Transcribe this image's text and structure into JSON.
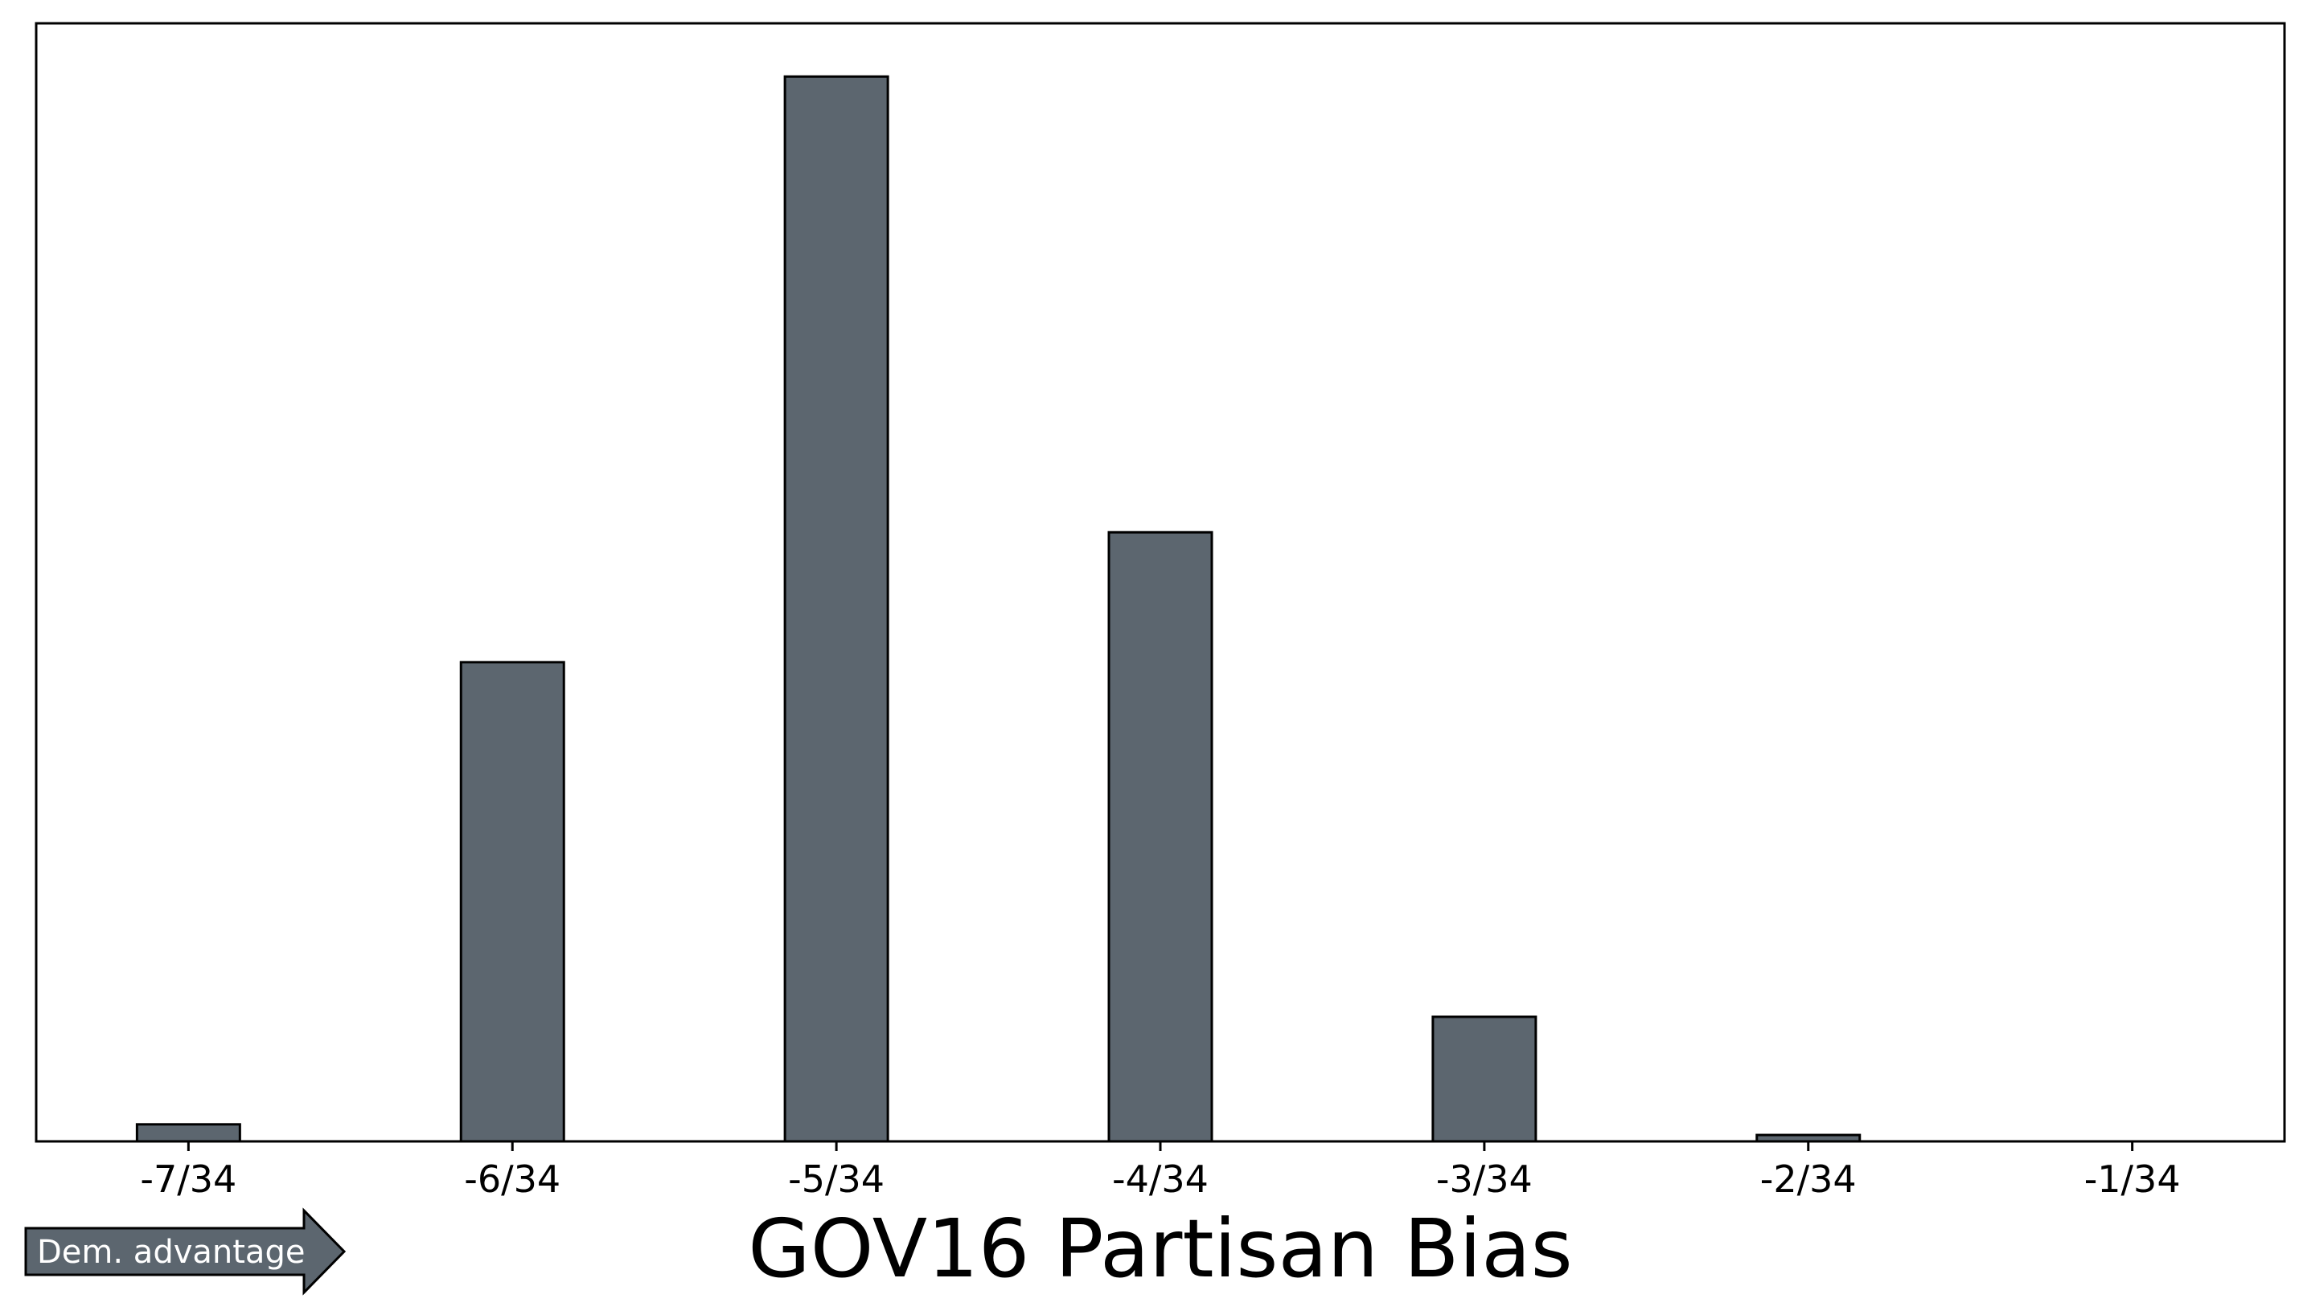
{
  "colors": {
    "bar_fill": "#5c666f",
    "bar_stroke": "#000000",
    "arrow_fill": "#5c666f",
    "arrow_text": "#ffffff"
  },
  "annotation": {
    "arrow_label": "Dem. advantage",
    "arrow_direction": "right"
  },
  "chart_data": {
    "type": "bar",
    "title": "GOV16 Partisan Bias",
    "xlabel": "",
    "ylabel": "",
    "grid": false,
    "y_ticks_visible": false,
    "x": [
      -7,
      -6.5,
      -6,
      -5.5,
      -5,
      -4.5,
      -4,
      -3.5,
      -3,
      -2.5,
      -2,
      -1.5,
      -1
    ],
    "x_unit": "/34",
    "values": [
      1.6,
      0,
      45.0,
      0,
      100,
      0,
      57.2,
      0,
      11.7,
      0,
      0.6,
      0,
      0
    ],
    "ylim": [
      0,
      105
    ],
    "tick_labels": [
      "-7/34",
      "-6/34",
      "-5/34",
      "-4/34",
      "-3/34",
      "-2/34",
      "-1/34"
    ]
  }
}
